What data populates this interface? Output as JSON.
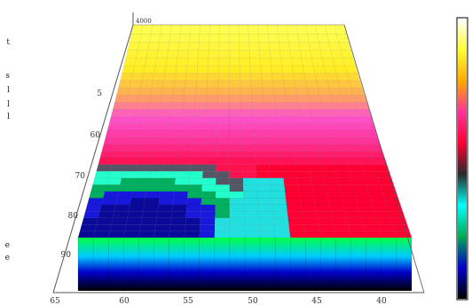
{
  "chart_data": {
    "type": "heatmap",
    "title": "",
    "xlabel": "",
    "ylabel": "",
    "zlabel": "",
    "x_ticks": [
      "65",
      "60",
      "55",
      "50",
      "45",
      "40"
    ],
    "y_ticks": [
      "5",
      "60",
      "70",
      "80",
      "90"
    ],
    "z_ticks": [
      "4000"
    ],
    "colorbar": {
      "colors": [
        "#ffffff",
        "#ffff33",
        "#ffaa00",
        "#ff3399",
        "#ff0033",
        "#2a2a2a",
        "#00ffff",
        "#00aa55",
        "#0000cc",
        "#000000"
      ]
    },
    "surface": {
      "rows": 30,
      "columns": 22,
      "description_level": {
        "top_region": "yellow",
        "middle_region": "magenta-pink",
        "left_lower_region": "blue-cyan-green",
        "right_lower_region": "red",
        "front_edge": "green-blue-black"
      }
    }
  },
  "left_edge_glyphs": [
    "t",
    "s",
    "l",
    "l",
    "l",
    "e",
    "e"
  ],
  "colors": {
    "background": "#ffffff",
    "axis": "#555555"
  }
}
